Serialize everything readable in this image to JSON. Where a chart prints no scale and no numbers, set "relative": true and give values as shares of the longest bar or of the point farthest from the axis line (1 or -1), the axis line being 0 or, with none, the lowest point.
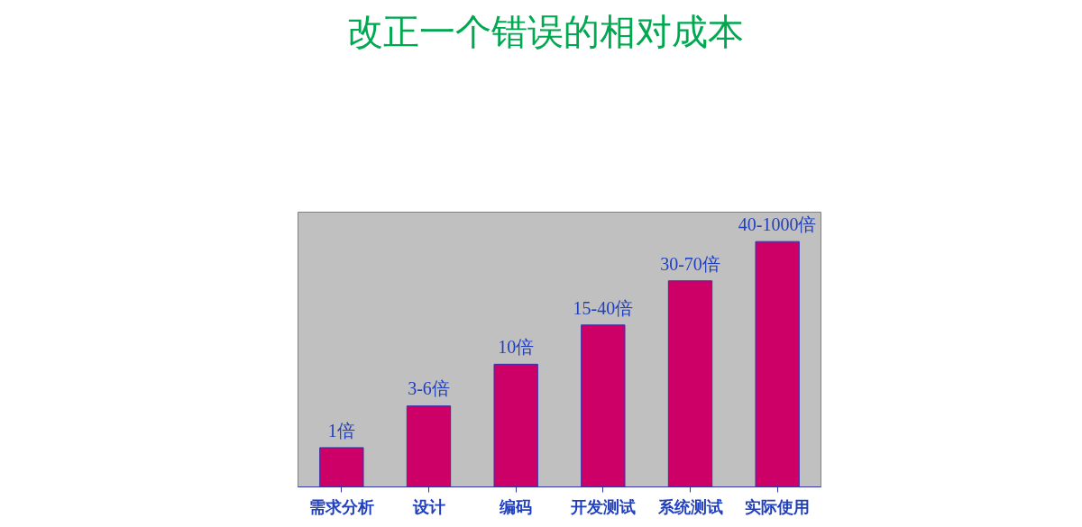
{
  "chart_data": {
    "type": "bar",
    "title": "改正一个错误的相对成本",
    "relative": true,
    "categories": [
      "需求分析",
      "设计",
      "编码",
      "开发测试",
      "系统测试",
      "实际使用"
    ],
    "values": [
      0.16,
      0.33,
      0.5,
      0.66,
      0.84,
      1
    ],
    "annotations": [
      {
        "text": "1倍",
        "x": "需求分析",
        "y": 0.16
      },
      {
        "text": "3-6倍",
        "x": "设计",
        "y": 0.33
      },
      {
        "text": "10倍",
        "x": "编码",
        "y": 0.5
      },
      {
        "text": "15-40倍",
        "x": "开发测试",
        "y": 0.66
      },
      {
        "text": "30-70倍",
        "x": "系统测试",
        "y": 0.84
      },
      {
        "text": "40-1000倍",
        "x": "实际使用",
        "y": 1
      }
    ],
    "color": "#cc0066",
    "grid": false
  }
}
